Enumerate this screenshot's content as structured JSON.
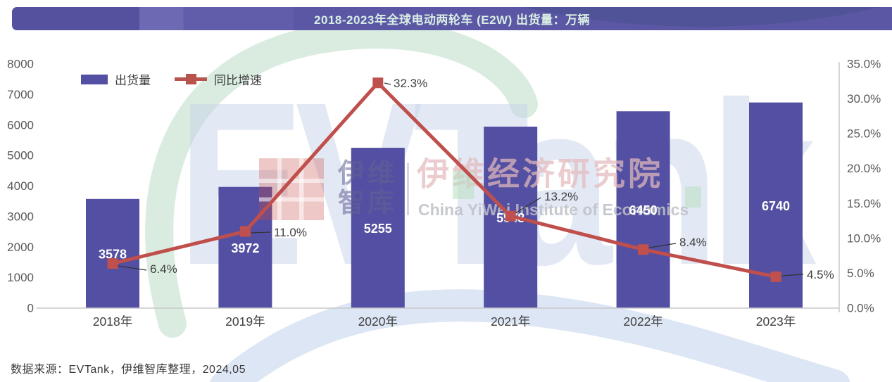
{
  "title": "2018-2023年全球电动两轮车 (E2W) 出货量：万辆",
  "source": "数据来源：EVTank，伊维智库整理，2024,05",
  "legend": {
    "shipments_label": "出货量",
    "growth_label": "同比增速"
  },
  "colors": {
    "bar": "#534fa2",
    "line": "#bf4f4c",
    "marker": "#c0504d",
    "title_bg": "#5b57a5",
    "title_text": "#d9eee3",
    "axis_line": "#c9c9c9",
    "tick_text": "#595959",
    "category_text": "#404040",
    "callout_text": "#404040",
    "bar_label": "#ffffff",
    "connector": "#333333"
  },
  "watermark": {
    "brand_caps": "EVT",
    "brand_lower": "ank",
    "zh_short_line1": "伊维",
    "zh_short_line2": "智库",
    "zh_long": "伊维经济研究院",
    "en": "China YiWei Institute of Economics"
  },
  "chart_data": {
    "type": "bar",
    "combo": "bar+line",
    "title": "2018-2023年全球电动两轮车 (E2W) 出货量：万辆",
    "categories": [
      "2018年",
      "2019年",
      "2020年",
      "2021年",
      "2022年",
      "2023年"
    ],
    "series": [
      {
        "name": "出货量",
        "type": "bar",
        "axis": "left",
        "values": [
          3578,
          3972,
          5255,
          5948,
          6450,
          6740
        ],
        "labels": [
          "3578",
          "3972",
          "5255",
          "5948",
          "6450",
          "6740"
        ]
      },
      {
        "name": "同比增速",
        "type": "line",
        "axis": "right",
        "values": [
          6.4,
          11.0,
          32.3,
          13.2,
          8.4,
          4.5
        ],
        "labels": [
          "6.4%",
          "11.0%",
          "32.3%",
          "13.2%",
          "8.4%",
          "4.5%"
        ]
      }
    ],
    "left_axis": {
      "min": 0,
      "max": 8000,
      "step": 1000,
      "ticks": [
        "8000",
        "7000",
        "6000",
        "5000",
        "4000",
        "3000",
        "2000",
        "1000",
        "0"
      ]
    },
    "right_axis": {
      "min": 0,
      "max": 35,
      "step": 5,
      "ticks": [
        "35.0%",
        "30.0%",
        "25.0%",
        "20.0%",
        "15.0%",
        "10.0%",
        "5.0%",
        "0.0%"
      ]
    },
    "grid": false,
    "legend_position": "top-left"
  }
}
